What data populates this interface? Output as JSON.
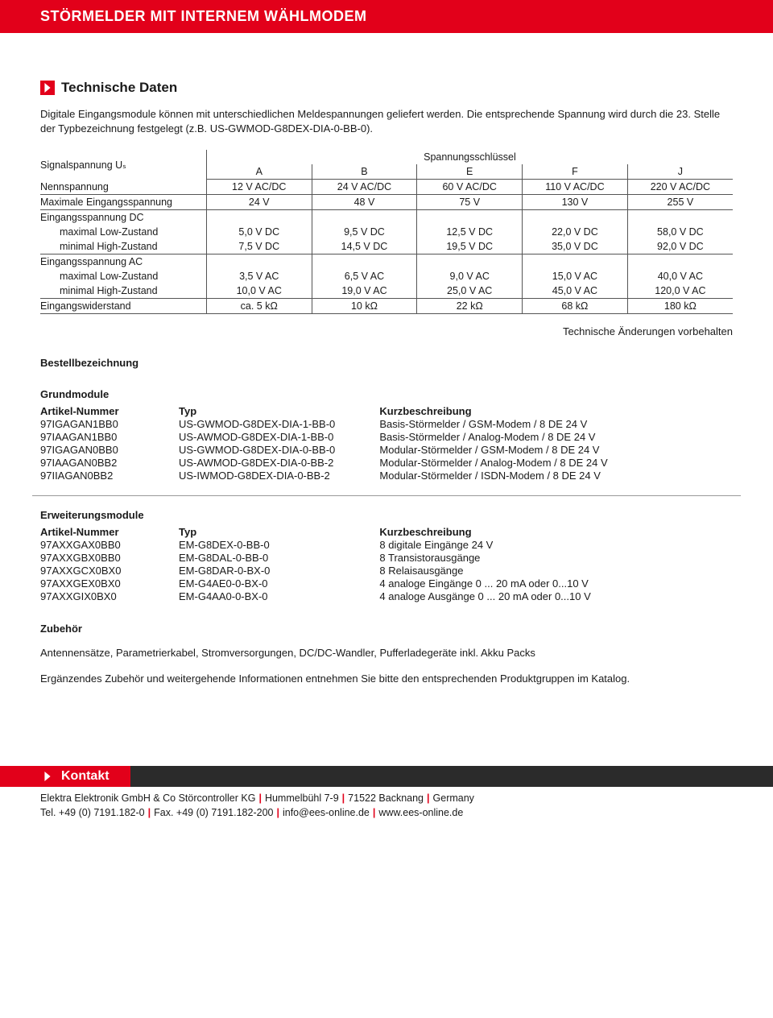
{
  "banner_title": "STÖRMELDER MIT INTERNEM WÄHLMODEM",
  "section_title": "Technische Daten",
  "intro": "Digitale Eingangsmodule können mit unterschiedlichen Meldespannungen geliefert werden. Die entsprechende Spannung wird durch die 23. Stelle der Typbezeichnung festgelegt (z.B. US-GWMOD-G8DEX-DIA-0-BB-0).",
  "spec": {
    "signal_label": "Signalspannung Uₛ",
    "key_label": "Spannungsschlüssel",
    "cols": [
      "A",
      "B",
      "E",
      "F",
      "J"
    ],
    "rows": [
      {
        "label": "Nennspannung",
        "vals": [
          "12 V AC/DC",
          "24 V AC/DC",
          "60 V AC/DC",
          "110 V AC/DC",
          "220 V AC/DC"
        ],
        "sep": true
      },
      {
        "label": "Maximale Eingangsspannung",
        "vals": [
          "24 V",
          "48 V",
          "75 V",
          "130 V",
          "255 V"
        ],
        "sep": true
      },
      {
        "label": "Eingangsspannung DC",
        "vals": [
          "",
          "",
          "",
          "",
          ""
        ],
        "sep": false
      },
      {
        "label": "maximal Low-Zustand",
        "indent": true,
        "vals": [
          "5,0 V DC",
          "9,5 V DC",
          "12,5 V DC",
          "22,0 V DC",
          "58,0 V DC"
        ],
        "sep": false
      },
      {
        "label": "minimal High-Zustand",
        "indent": true,
        "vals": [
          "7,5 V DC",
          "14,5 V DC",
          "19,5 V DC",
          "35,0 V DC",
          "92,0 V DC"
        ],
        "sep": true
      },
      {
        "label": "Eingangsspannung AC",
        "vals": [
          "",
          "",
          "",
          "",
          ""
        ],
        "sep": false
      },
      {
        "label": "maximal Low-Zustand",
        "indent": true,
        "vals": [
          "3,5 V AC",
          "6,5 V AC",
          "9,0 V AC",
          "15,0 V AC",
          "40,0 V AC"
        ],
        "sep": false
      },
      {
        "label": "minimal High-Zustand",
        "indent": true,
        "vals": [
          "10,0 V AC",
          "19,0 V AC",
          "25,0 V AC",
          "45,0 V AC",
          "120,0 V AC"
        ],
        "sep": true
      },
      {
        "label": "Eingangswiderstand",
        "vals": [
          "ca. 5 kΩ",
          "10 kΩ",
          "22 kΩ",
          "68 kΩ",
          "180 kΩ"
        ],
        "sep": true
      }
    ]
  },
  "note": "Technische Änderungen vorbehalten",
  "order_heading": "Bestellbezeichnung",
  "grund_heading": "Grundmodule",
  "col_headers": {
    "c1": "Artikel-Nummer",
    "c2": "Typ",
    "c3": "Kurzbeschreibung"
  },
  "grund_rows": [
    [
      "97IGAGAN1BB0",
      "US-GWMOD-G8DEX-DIA-1-BB-0",
      "Basis-Störmelder / GSM-Modem / 8 DE 24 V"
    ],
    [
      "97IAAGAN1BB0",
      "US-AWMOD-G8DEX-DIA-1-BB-0",
      "Basis-Störmelder / Analog-Modem / 8 DE 24 V"
    ],
    [
      "97IGAGAN0BB0",
      "US-GWMOD-G8DEX-DIA-0-BB-0",
      "Modular-Störmelder / GSM-Modem / 8 DE 24 V"
    ],
    [
      "97IAAGAN0BB2",
      "US-AWMOD-G8DEX-DIA-0-BB-2",
      "Modular-Störmelder / Analog-Modem / 8 DE 24 V"
    ],
    [
      "97IIAGAN0BB2",
      "US-IWMOD-G8DEX-DIA-0-BB-2",
      "Modular-Störmelder / ISDN-Modem / 8 DE 24 V"
    ]
  ],
  "erw_heading": "Erweiterungsmodule",
  "erw_rows": [
    [
      "97AXXGAX0BB0",
      "EM-G8DEX-0-BB-0",
      "8 digitale Eingänge 24 V"
    ],
    [
      "97AXXGBX0BB0",
      "EM-G8DAL-0-BB-0",
      "8 Transistorausgänge"
    ],
    [
      "97AXXGCX0BX0",
      "EM-G8DAR-0-BX-0",
      "8 Relaisausgänge"
    ],
    [
      "97AXXGEX0BX0",
      "EM-G4AE0-0-BX-0",
      "4 analoge Eingänge 0 ... 20 mA oder 0...10 V"
    ],
    [
      "97AXXGIX0BX0",
      "EM-G4AA0-0-BX-0",
      "4 analoge Ausgänge 0 ... 20 mA oder 0...10 V"
    ]
  ],
  "zubehor_heading": "Zubehör",
  "zubehor_p1": "Antennensätze, Parametrierkabel, Stromversorgungen, DC/DC-Wandler, Pufferladegeräte inkl. Akku Packs",
  "zubehor_p2": "Ergänzendes Zubehör und weitergehende Informationen entnehmen Sie bitte den entsprechenden Produktgruppen im Katalog.",
  "kontakt_label": "Kontakt",
  "footer": {
    "line1_parts": [
      "Elektra Elektronik GmbH & Co Störcontroller KG",
      "Hummelbühl 7-9",
      "71522 Backnang",
      "Germany"
    ],
    "line2_parts": [
      "Tel. +49 (0) 7191.182-0",
      "Fax. +49 (0) 7191.182-200",
      "info@ees-online.de",
      "www.ees-online.de"
    ]
  }
}
